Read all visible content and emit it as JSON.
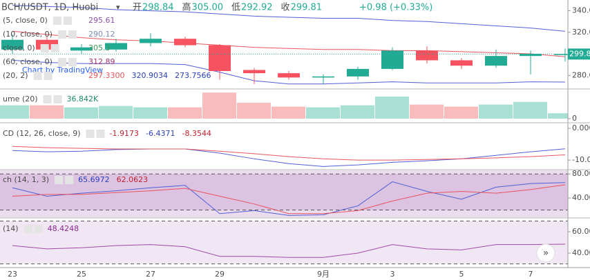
{
  "header": {
    "symbol": "BCH/USDT, 1D, Huobi",
    "ohlc": [
      {
        "label": "开",
        "value": "298.84"
      },
      {
        "label": "高",
        "value": "305.00"
      },
      {
        "label": "低",
        "value": "292.92"
      },
      {
        "label": "收",
        "value": "299.81"
      }
    ],
    "change": "+0.98 (+0.33%)"
  },
  "watermark": "Chart by TradingView",
  "chart_data": [
    {
      "type": "candlestick",
      "categories": [
        "23",
        null,
        "25",
        null,
        "27",
        null,
        "29",
        null,
        null,
        "9月",
        null,
        "3",
        null,
        "5",
        null,
        "7",
        null
      ],
      "open": [
        304,
        313,
        303,
        304,
        310,
        314,
        308,
        285,
        282,
        278,
        279,
        286,
        303,
        294,
        289,
        298,
        298.84
      ],
      "high": [
        318,
        316,
        309,
        314,
        319,
        316,
        309,
        287,
        284,
        281,
        288,
        306,
        307,
        296,
        304,
        303,
        305.0
      ],
      "low": [
        300,
        301,
        300,
        302,
        307,
        306,
        276,
        272,
        276,
        272,
        276,
        285,
        291,
        286,
        287,
        281,
        292.92
      ],
      "close": [
        313,
        304,
        306,
        310,
        314,
        308,
        284,
        282,
        278,
        279,
        286,
        303,
        294,
        289,
        298,
        300,
        299.81
      ],
      "up_color": "#22ab94",
      "down_color": "#f7525f",
      "series": [
        {
          "color": "#4f5fd6",
          "values": [
            345,
            344,
            343,
            341,
            340,
            339,
            337,
            335,
            334,
            333,
            333,
            331,
            330,
            328,
            326,
            324,
            320.9
          ]
        },
        {
          "color": "#e8545c",
          "values": [
            321,
            318,
            315,
            313,
            312,
            310,
            308,
            306,
            305,
            304,
            304,
            303,
            303,
            302,
            301,
            300,
            297.3
          ]
        },
        {
          "color": "#4f5fd6",
          "values": [
            294,
            292,
            291,
            291,
            291,
            290,
            283,
            275,
            272,
            272,
            273,
            274,
            273,
            273,
            273,
            274,
            273.8
          ]
        }
      ],
      "legend": [
        {
          "label": "(5, close, 0)",
          "values": [
            "295.61"
          ],
          "colors": [
            "#8b4fa8"
          ]
        },
        {
          "label": "(10, close, 0)",
          "values": [
            "290.12"
          ],
          "colors": [
            "#7b8bb0"
          ]
        },
        {
          "label": "close, 0)",
          "values": [
            "305.3"
          ],
          "colors": [
            "#3e9a5a"
          ]
        },
        {
          "label": "(60, close, 0)",
          "values": [
            "312.89"
          ],
          "colors": [
            "#a8326e"
          ]
        },
        {
          "label": "(20, 2)",
          "values": [
            "297.3300",
            "320.9034",
            "273.7566"
          ],
          "colors": [
            "#e8545c",
            "#2a3fb8",
            "#2a3fb8"
          ]
        }
      ],
      "ylim": [
        268,
        350
      ],
      "yticks": [
        {
          "value": 340,
          "label": "340.00"
        },
        {
          "value": 320,
          "label": "320.00"
        },
        {
          "value": 280,
          "label": "280.00"
        }
      ]
    },
    {
      "type": "bar",
      "values": [
        92,
        92,
        78,
        87,
        78,
        78,
        180,
        110,
        83,
        78,
        92,
        152,
        97,
        83,
        97,
        115,
        37
      ],
      "colors": [
        "#a8e0d3",
        "#f9bcbc",
        "#a8e0d3",
        "#a8e0d3",
        "#a8e0d3",
        "#f9bcbc",
        "#f9bcbc",
        "#f9bcbc",
        "#f9bcbc",
        "#a8e0d3",
        "#a8e0d3",
        "#a8e0d3",
        "#f9bcbc",
        "#f9bcbc",
        "#a8e0d3",
        "#a8e0d3",
        "#a8e0d3"
      ],
      "legend": [
        {
          "label": "ume (20)",
          "values": [
            "36.842K"
          ],
          "colors": [
            "#1b8a6b"
          ]
        }
      ],
      "ylim": [
        0,
        200
      ],
      "yticks": [
        0
      ]
    },
    {
      "type": "line",
      "series": [
        {
          "color": "#4f5fd6",
          "values": [
            -7.0,
            -7.4,
            -7.2,
            -6.7,
            -6.5,
            -6.5,
            -7.8,
            -9.6,
            -11.1,
            -12.0,
            -11.5,
            -10.7,
            -10.2,
            -9.6,
            -8.5,
            -7.4,
            -6.44
          ]
        },
        {
          "color": "#e8545c",
          "values": [
            -5.7,
            -6.1,
            -6.3,
            -6.5,
            -6.5,
            -6.5,
            -7.2,
            -8.0,
            -8.9,
            -9.6,
            -10.0,
            -10.0,
            -9.8,
            -9.6,
            -9.3,
            -8.9,
            -8.35
          ]
        }
      ],
      "legend": [
        {
          "label": "CD (12, 26, close, 9)",
          "values": [
            "-1.9173",
            "-6.4371",
            "-8.3544"
          ],
          "colors": [
            "#c0222e",
            "#2a3fb8",
            "#c0222e"
          ]
        }
      ],
      "ylim": [
        -13,
        1.3
      ],
      "yticks": [
        {
          "value": 0,
          "label": "0.000"
        },
        {
          "value": -10,
          "label": "-10.000"
        }
      ]
    },
    {
      "type": "line",
      "series": [
        {
          "color": "#4f5fd6",
          "values": [
            57,
            43,
            48,
            52,
            57,
            61,
            14,
            19,
            11,
            12,
            27,
            67,
            51,
            38,
            58,
            64,
            65.7
          ]
        },
        {
          "color": "#e8545c",
          "values": [
            43,
            46,
            46,
            49,
            52,
            56,
            43,
            30,
            14,
            14,
            19,
            35,
            48,
            51,
            48,
            54,
            62.1
          ]
        }
      ],
      "bands": [
        20,
        80
      ],
      "band_color": "#dcc3e2",
      "pane_color": "#ecdcef",
      "legend": [
        {
          "label": "ch (14, 1, 3)",
          "values": [
            "65.6972",
            "62.0623"
          ],
          "colors": [
            "#2a3fb8",
            "#c0222e"
          ]
        }
      ],
      "ylim": [
        8,
        86
      ],
      "yticks": [
        {
          "value": 80,
          "label": "80.00"
        },
        {
          "value": 40,
          "label": "40.00"
        }
      ]
    },
    {
      "type": "line",
      "series": [
        {
          "color": "#a04aa8",
          "values": [
            47,
            44,
            45,
            47,
            48,
            46,
            37,
            37,
            36,
            36,
            40,
            48,
            44,
            43,
            48,
            48,
            48.4
          ]
        }
      ],
      "bands": [
        30,
        70
      ],
      "band_color": "#f1e6f3",
      "pane_color": "#ffffff",
      "legend": [
        {
          "label": "(14)",
          "values": [
            "48.4248"
          ],
          "colors": [
            "#8b2a90"
          ]
        }
      ],
      "ylim": [
        26.5,
        71.6
      ],
      "yticks": [
        {
          "value": 60,
          "label": "60.00"
        },
        {
          "value": 40,
          "label": "40.00"
        }
      ]
    }
  ]
}
